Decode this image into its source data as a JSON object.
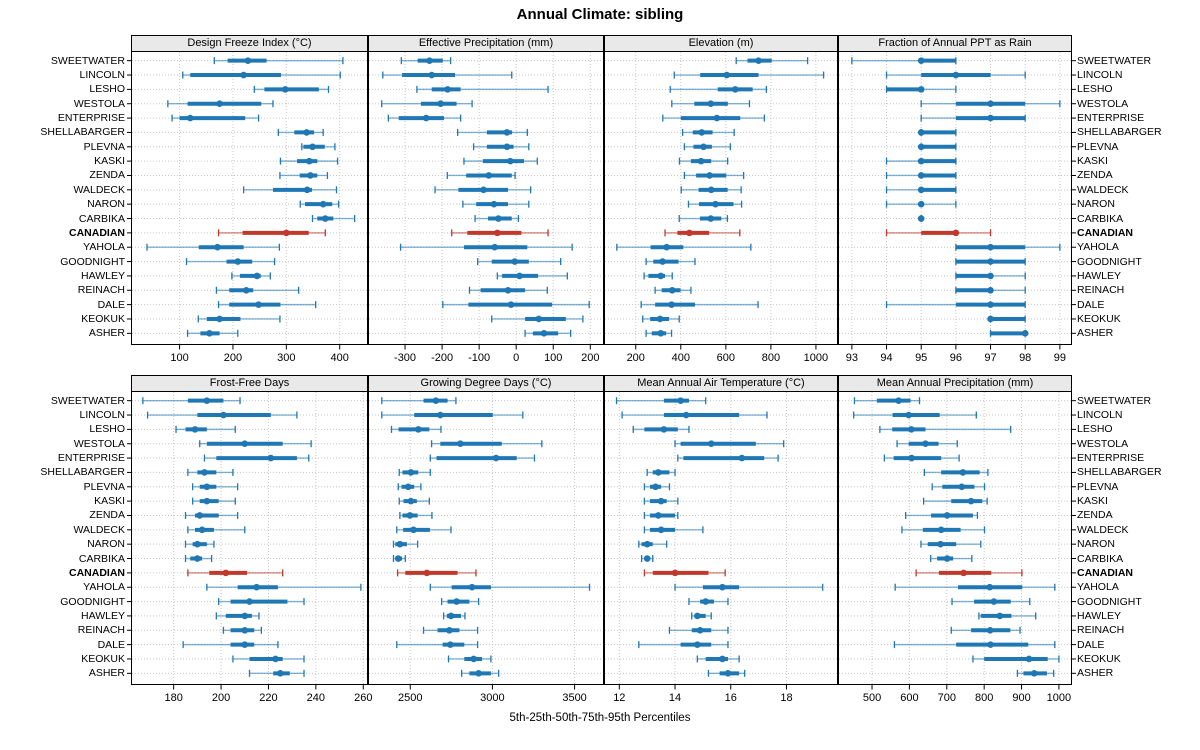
{
  "title": "Annual Climate: sibling",
  "caption": "5th-25th-50th-75th-95th Percentiles",
  "colors": {
    "series": "#1f77b4",
    "highlight": "#c0392b",
    "strip_bg": "#e9e9e9",
    "grid": "#c6c6c6",
    "border": "#000000"
  },
  "percentile_labels": [
    "5th",
    "25th",
    "50th",
    "75th",
    "95th"
  ],
  "stations": [
    "SWEETWATER",
    "LINCOLN",
    "LESHO",
    "WESTOLA",
    "ENTERPRISE",
    "SHELLABARGER",
    "PLEVNA",
    "KASKI",
    "ZENDA",
    "WALDECK",
    "NARON",
    "CARBIKA",
    "CANADIAN",
    "YAHOLA",
    "GOODNIGHT",
    "HAWLEY",
    "REINACH",
    "DALE",
    "KEOKUK",
    "ASHER"
  ],
  "highlight_station": "CANADIAN",
  "chart_data": [
    {
      "type": "interval",
      "title": "Design Freeze Index (°C)",
      "xlim": [
        9,
        453
      ],
      "ticks": [
        100,
        200,
        300,
        400
      ],
      "values": [
        [
          165,
          190,
          228,
          263,
          406
        ],
        [
          106,
          120,
          220,
          290,
          401
        ],
        [
          240,
          259,
          298,
          361,
          379
        ],
        [
          78,
          115,
          175,
          253,
          275
        ],
        [
          86,
          100,
          120,
          223,
          248
        ],
        [
          285,
          315,
          338,
          352,
          369
        ],
        [
          329,
          332,
          349,
          372,
          391
        ],
        [
          289,
          320,
          343,
          358,
          396
        ],
        [
          288,
          325,
          345,
          358,
          377
        ],
        [
          220,
          275,
          339,
          348,
          394
        ],
        [
          326,
          335,
          369,
          386,
          398
        ],
        [
          349,
          358,
          373,
          388,
          428
        ],
        [
          173,
          218,
          300,
          342,
          373
        ],
        [
          39,
          136,
          171,
          220,
          287
        ],
        [
          113,
          188,
          209,
          236,
          278
        ],
        [
          198,
          213,
          245,
          252,
          270
        ],
        [
          169,
          193,
          225,
          238,
          323
        ],
        [
          173,
          193,
          248,
          289,
          355
        ],
        [
          135,
          151,
          175,
          214,
          288
        ],
        [
          115,
          139,
          156,
          175,
          209
        ]
      ]
    },
    {
      "type": "interval",
      "title": "Effective Precipitation (mm)",
      "xlim": [
        -400,
        237
      ],
      "ticks": [
        -300,
        -200,
        -100,
        0,
        100,
        200
      ],
      "values": [
        [
          -310,
          -266,
          -234,
          -198,
          -177
        ],
        [
          -360,
          -308,
          -228,
          -165,
          -12
        ],
        [
          -268,
          -228,
          -185,
          -150,
          86
        ],
        [
          -363,
          -257,
          -204,
          -161,
          -119
        ],
        [
          -345,
          -317,
          -243,
          -195,
          -150
        ],
        [
          -158,
          -79,
          -25,
          -11,
          30
        ],
        [
          -115,
          -79,
          -25,
          -7,
          34
        ],
        [
          -141,
          -90,
          -16,
          21,
          57
        ],
        [
          -186,
          -135,
          -74,
          -12,
          -3
        ],
        [
          -219,
          -156,
          -88,
          -22,
          39
        ],
        [
          -144,
          -108,
          -60,
          -22,
          34
        ],
        [
          -111,
          -76,
          -48,
          -12,
          6
        ],
        [
          -174,
          -132,
          -51,
          14,
          86
        ],
        [
          -312,
          -141,
          -58,
          30,
          151
        ],
        [
          -104,
          -66,
          -4,
          34,
          120
        ],
        [
          -51,
          -38,
          9,
          59,
          138
        ],
        [
          -126,
          -96,
          -22,
          24,
          84
        ],
        [
          -198,
          -129,
          -14,
          97,
          197
        ],
        [
          -66,
          24,
          61,
          134,
          180
        ],
        [
          24,
          45,
          75,
          113,
          147
        ]
      ]
    },
    {
      "type": "interval",
      "title": "Elevation (m)",
      "xlim": [
        59,
        1098
      ],
      "ticks": [
        200,
        400,
        600,
        800,
        1000
      ],
      "values": [
        [
          646,
          696,
          745,
          804,
          963
        ],
        [
          371,
          486,
          604,
          745,
          1034
        ],
        [
          353,
          564,
          642,
          719,
          780
        ],
        [
          360,
          460,
          533,
          609,
          705
        ],
        [
          320,
          400,
          560,
          664,
          771
        ],
        [
          408,
          453,
          493,
          541,
          637
        ],
        [
          416,
          456,
          501,
          538,
          620
        ],
        [
          394,
          445,
          490,
          535,
          608
        ],
        [
          416,
          468,
          528,
          602,
          679
        ],
        [
          402,
          479,
          535,
          608,
          668
        ],
        [
          434,
          481,
          554,
          634,
          670
        ],
        [
          393,
          485,
          533,
          580,
          607
        ],
        [
          330,
          385,
          438,
          526,
          662
        ],
        [
          116,
          266,
          337,
          411,
          711
        ],
        [
          246,
          278,
          319,
          390,
          463
        ],
        [
          237,
          256,
          311,
          330,
          362
        ],
        [
          286,
          315,
          362,
          399,
          445
        ],
        [
          224,
          286,
          359,
          463,
          743
        ],
        [
          231,
          264,
          308,
          348,
          393
        ],
        [
          246,
          271,
          311,
          335,
          359
        ]
      ]
    },
    {
      "type": "interval",
      "title": "Fraction of Annual PPT as Rain",
      "xlim": [
        92.6,
        99.35
      ],
      "ticks": [
        93,
        94,
        95,
        96,
        97,
        98,
        99
      ],
      "values": [
        [
          93,
          95,
          95,
          96,
          96
        ],
        [
          94,
          95,
          96,
          97,
          98
        ],
        [
          94,
          94,
          95,
          95,
          96
        ],
        [
          95,
          96,
          97,
          98,
          99
        ],
        [
          95,
          96,
          97,
          98,
          98
        ],
        [
          95,
          95,
          95,
          96,
          96
        ],
        [
          95,
          95,
          95,
          96,
          96
        ],
        [
          94,
          95,
          95,
          96,
          96
        ],
        [
          94,
          95,
          95,
          96,
          96
        ],
        [
          94,
          95,
          95,
          96,
          96
        ],
        [
          94,
          95,
          95,
          95,
          96
        ],
        [
          95,
          95,
          95,
          95,
          95
        ],
        [
          94,
          95,
          96,
          96,
          97
        ],
        [
          96,
          96,
          97,
          98,
          99
        ],
        [
          96,
          96,
          97,
          98,
          98
        ],
        [
          96,
          96,
          97,
          97,
          98
        ],
        [
          96,
          96,
          97,
          97,
          98
        ],
        [
          94,
          96,
          97,
          98,
          98
        ],
        [
          97,
          97,
          97,
          98,
          98
        ],
        [
          97,
          97,
          98,
          98,
          98
        ]
      ]
    },
    {
      "type": "interval",
      "title": "Frost-Free Days",
      "xlim": [
        162,
        262
      ],
      "ticks": [
        180,
        200,
        220,
        240,
        260
      ],
      "values": [
        [
          167,
          186,
          194,
          201,
          208
        ],
        [
          169,
          190,
          201,
          221,
          232
        ],
        [
          181,
          185,
          189,
          194,
          206
        ],
        [
          191,
          194,
          210,
          226,
          238
        ],
        [
          193,
          198,
          221,
          232,
          237
        ],
        [
          186,
          190,
          193,
          198,
          205
        ],
        [
          188,
          191,
          194,
          198,
          207
        ],
        [
          188,
          191,
          194,
          199,
          206
        ],
        [
          185,
          189,
          191,
          199,
          207
        ],
        [
          186,
          189,
          192,
          197,
          210
        ],
        [
          185,
          188,
          190,
          194,
          197
        ],
        [
          185,
          187,
          190,
          192,
          196
        ],
        [
          186,
          195,
          202,
          211,
          226
        ],
        [
          194,
          207,
          215,
          224,
          259
        ],
        [
          199,
          204,
          212,
          228,
          235
        ],
        [
          198,
          202,
          210,
          213,
          216
        ],
        [
          201,
          204,
          210,
          214,
          217
        ],
        [
          184,
          204,
          210,
          214,
          224
        ],
        [
          205,
          212,
          223,
          226,
          235
        ],
        [
          212,
          222,
          225,
          229,
          235
        ]
      ]
    },
    {
      "type": "interval",
      "title": "Growing Degree Days (°C)",
      "xlim": [
        2243,
        3679
      ],
      "ticks": [
        2500,
        3000,
        3500
      ],
      "values": [
        [
          2327,
          2581,
          2656,
          2727,
          2778
        ],
        [
          2327,
          2524,
          2683,
          3002,
          3185
        ],
        [
          2386,
          2429,
          2549,
          2616,
          2687
        ],
        [
          2630,
          2683,
          2805,
          3057,
          3301
        ],
        [
          2622,
          2660,
          3022,
          3148,
          3256
        ],
        [
          2433,
          2453,
          2504,
          2549,
          2622
        ],
        [
          2427,
          2447,
          2488,
          2524,
          2565
        ],
        [
          2433,
          2459,
          2504,
          2540,
          2616
        ],
        [
          2437,
          2453,
          2498,
          2545,
          2632
        ],
        [
          2418,
          2457,
          2520,
          2620,
          2748
        ],
        [
          2398,
          2409,
          2437,
          2480,
          2545
        ],
        [
          2398,
          2410,
          2427,
          2450,
          2470
        ],
        [
          2423,
          2470,
          2601,
          2788,
          2900
        ],
        [
          2622,
          2752,
          2876,
          2991,
          3591
        ],
        [
          2691,
          2727,
          2782,
          2860,
          2916
        ],
        [
          2703,
          2723,
          2748,
          2809,
          2833
        ],
        [
          2581,
          2666,
          2738,
          2799,
          2910
        ],
        [
          2418,
          2697,
          2744,
          2829,
          2910
        ],
        [
          2733,
          2829,
          2886,
          2937,
          2991
        ],
        [
          2813,
          2860,
          2916,
          2991,
          3038
        ]
      ]
    },
    {
      "type": "interval",
      "title": "Mean Annual Air Temperature (°C)",
      "xlim": [
        11.45,
        19.85
      ],
      "ticks": [
        12,
        14,
        16,
        18
      ],
      "values": [
        [
          11.9,
          13.6,
          14.2,
          14.5,
          15.1
        ],
        [
          12.1,
          13.6,
          14.4,
          16.3,
          17.3
        ],
        [
          12.5,
          12.9,
          13.6,
          14.1,
          14.5
        ],
        [
          14.0,
          14.2,
          15.3,
          16.9,
          17.9
        ],
        [
          14.1,
          14.3,
          16.4,
          17.2,
          17.7
        ],
        [
          13.0,
          13.2,
          13.4,
          13.8,
          14.0
        ],
        [
          12.9,
          13.1,
          13.3,
          13.5,
          13.8
        ],
        [
          12.9,
          13.1,
          13.5,
          13.7,
          14.1
        ],
        [
          12.9,
          13.1,
          13.4,
          14.0,
          14.1
        ],
        [
          12.9,
          13.1,
          13.5,
          14.0,
          15.0
        ],
        [
          12.7,
          12.8,
          13.0,
          13.2,
          13.7
        ],
        [
          12.8,
          12.9,
          13.0,
          13.1,
          13.2
        ],
        [
          12.9,
          13.2,
          14.0,
          15.2,
          15.8
        ],
        [
          14.0,
          15.0,
          15.7,
          16.3,
          19.3
        ],
        [
          14.5,
          14.9,
          15.1,
          15.4,
          15.9
        ],
        [
          14.6,
          14.7,
          14.8,
          15.1,
          15.3
        ],
        [
          13.8,
          14.6,
          14.9,
          15.3,
          15.9
        ],
        [
          12.7,
          14.2,
          14.8,
          15.3,
          15.9
        ],
        [
          14.8,
          15.1,
          15.7,
          15.9,
          16.3
        ],
        [
          15.2,
          15.6,
          15.9,
          16.3,
          16.5
        ]
      ]
    },
    {
      "type": "interval",
      "title": "Mean Annual Precipitation (mm)",
      "xlim": [
        409,
        1035
      ],
      "ticks": [
        500,
        600,
        700,
        800,
        900,
        1000
      ],
      "values": [
        [
          453,
          513,
          571,
          603,
          627
        ],
        [
          451,
          555,
          598,
          681,
          779
        ],
        [
          521,
          554,
          605,
          643,
          871
        ],
        [
          567,
          598,
          643,
          678,
          728
        ],
        [
          533,
          558,
          606,
          685,
          733
        ],
        [
          640,
          685,
          743,
          788,
          810
        ],
        [
          661,
          688,
          740,
          774,
          801
        ],
        [
          638,
          712,
          765,
          795,
          808
        ],
        [
          590,
          658,
          701,
          770,
          782
        ],
        [
          580,
          636,
          685,
          737,
          801
        ],
        [
          631,
          649,
          683,
          725,
          791
        ],
        [
          657,
          674,
          701,
          717,
          767
        ],
        [
          618,
          679,
          745,
          819,
          901
        ],
        [
          562,
          730,
          815,
          902,
          989
        ],
        [
          714,
          773,
          826,
          871,
          922
        ],
        [
          786,
          791,
          842,
          873,
          938
        ],
        [
          712,
          765,
          816,
          870,
          896
        ],
        [
          560,
          725,
          817,
          918,
          989
        ],
        [
          770,
          800,
          920,
          970,
          1000
        ],
        [
          889,
          905,
          934,
          968,
          986
        ]
      ]
    }
  ]
}
